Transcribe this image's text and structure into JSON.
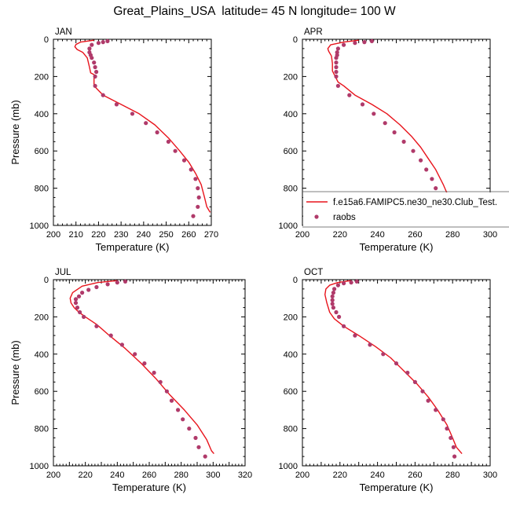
{
  "title": "Great_Plains_USA  latitude= 45 N longitude= 100 W",
  "colors": {
    "model_line": "#e8141c",
    "raobs_marker": "#b03a6a",
    "axis": "#000000",
    "background": "#ffffff"
  },
  "legend": {
    "panel": "APR",
    "entries": [
      {
        "label": "f.e15a6.FAMIPC5.ne30_ne30.Club_Test.",
        "style": "line"
      },
      {
        "label": "raobs",
        "style": "marker"
      }
    ]
  },
  "chart_data": [
    {
      "type": "line",
      "panel_label": "JAN",
      "xlabel": "Temperature (K)",
      "ylabel": "Pressure (mb)",
      "xlim": [
        200,
        270
      ],
      "ylim": [
        1000,
        0
      ],
      "y_reversed": true,
      "xticks": [
        200,
        210,
        220,
        230,
        240,
        250,
        260,
        270
      ],
      "yticks": [
        0,
        200,
        400,
        600,
        800,
        1000
      ],
      "series": [
        {
          "name": "f.e15a6.FAMIPC5.ne30_ne30.Club_Test.",
          "kind": "line",
          "points": [
            [
              218,
              5
            ],
            [
              212,
              15
            ],
            [
              210,
              28
            ],
            [
              209.5,
              40
            ],
            [
              210.5,
              55
            ],
            [
              213,
              70
            ],
            [
              215,
              100
            ],
            [
              216,
              150
            ],
            [
              216.5,
              180
            ],
            [
              218,
              190
            ],
            [
              218,
              250
            ],
            [
              222,
              300
            ],
            [
              230,
              350
            ],
            [
              238,
              400
            ],
            [
              245,
              460
            ],
            [
              251,
              530
            ],
            [
              256,
              600
            ],
            [
              260,
              660
            ],
            [
              263,
              720
            ],
            [
              265.5,
              780
            ],
            [
              267,
              850
            ],
            [
              268,
              900
            ],
            [
              269.5,
              930
            ]
          ]
        },
        {
          "name": "raobs",
          "kind": "marker",
          "points": [
            [
              224,
              10
            ],
            [
              222,
              15
            ],
            [
              220,
              20
            ],
            [
              217,
              30
            ],
            [
              216,
              50
            ],
            [
              216,
              70
            ],
            [
              216.5,
              85
            ],
            [
              217,
              100
            ],
            [
              218,
              125
            ],
            [
              218.5,
              150
            ],
            [
              219,
              175
            ],
            [
              218.5,
              200
            ],
            [
              218.5,
              250
            ],
            [
              222,
              300
            ],
            [
              228,
              350
            ],
            [
              235,
              400
            ],
            [
              241,
              450
            ],
            [
              246,
              500
            ],
            [
              251,
              550
            ],
            [
              254,
              600
            ],
            [
              258,
              650
            ],
            [
              261,
              700
            ],
            [
              263,
              750
            ],
            [
              264,
              800
            ],
            [
              264.5,
              850
            ],
            [
              264,
              900
            ],
            [
              262,
              950
            ]
          ]
        }
      ]
    },
    {
      "type": "line",
      "panel_label": "APR",
      "xlabel": "Temperature (K)",
      "ylabel": "",
      "xlim": [
        200,
        300
      ],
      "ylim": [
        1000,
        0
      ],
      "y_reversed": true,
      "xticks": [
        200,
        210,
        220,
        230,
        240,
        250,
        260,
        270,
        280,
        290,
        300
      ],
      "yticks": [
        0,
        200,
        400,
        600,
        800,
        1000
      ],
      "series": [
        {
          "name": "f.e15a6.FAMIPC5.ne30_ne30.Club_Test.",
          "kind": "line",
          "points": [
            [
              230,
              5
            ],
            [
              222,
              15
            ],
            [
              215,
              30
            ],
            [
              213.5,
              50
            ],
            [
              214,
              65
            ],
            [
              215.5,
              90
            ],
            [
              216,
              130
            ],
            [
              216,
              170
            ],
            [
              217.5,
              200
            ],
            [
              219,
              230
            ],
            [
              222,
              250
            ],
            [
              228,
              300
            ],
            [
              237,
              350
            ],
            [
              245,
              400
            ],
            [
              252,
              460
            ],
            [
              258,
              520
            ],
            [
              263,
              580
            ],
            [
              267,
              640
            ],
            [
              271,
              700
            ],
            [
              275,
              780
            ],
            [
              278,
              850
            ],
            [
              280,
              900
            ],
            [
              283,
              935
            ]
          ]
        },
        {
          "name": "raobs",
          "kind": "marker",
          "points": [
            [
              237,
              10
            ],
            [
              233,
              15
            ],
            [
              228,
              20
            ],
            [
              222,
              30
            ],
            [
              219,
              50
            ],
            [
              218.5,
              70
            ],
            [
              218.5,
              85
            ],
            [
              218,
              100
            ],
            [
              218,
              125
            ],
            [
              218,
              150
            ],
            [
              218,
              175
            ],
            [
              218,
              200
            ],
            [
              219,
              250
            ],
            [
              225,
              300
            ],
            [
              232,
              350
            ],
            [
              238,
              400
            ],
            [
              244,
              450
            ],
            [
              249,
              500
            ],
            [
              254,
              550
            ],
            [
              259,
              600
            ],
            [
              263,
              650
            ],
            [
              266,
              700
            ],
            [
              269,
              750
            ],
            [
              271,
              800
            ],
            [
              274,
              850
            ],
            [
              277,
              900
            ],
            [
              280,
              950
            ]
          ]
        }
      ]
    },
    {
      "type": "line",
      "panel_label": "JUL",
      "xlabel": "Temperature (K)",
      "ylabel": "Pressure (mb)",
      "xlim": [
        200,
        320
      ],
      "ylim": [
        1000,
        0
      ],
      "y_reversed": true,
      "xticks": [
        200,
        210,
        220,
        230,
        240,
        250,
        260,
        270,
        280,
        290,
        300,
        310,
        320
      ],
      "yticks": [
        0,
        200,
        400,
        600,
        800,
        1000
      ],
      "series": [
        {
          "name": "f.e15a6.FAMIPC5.ne30_ne30.Club_Test.",
          "kind": "line",
          "points": [
            [
              240,
              5
            ],
            [
              228,
              15
            ],
            [
              218,
              35
            ],
            [
              212,
              70
            ],
            [
              210.5,
              100
            ],
            [
              211,
              125
            ],
            [
              213,
              150
            ],
            [
              216,
              175
            ],
            [
              220,
              200
            ],
            [
              227,
              240
            ],
            [
              235,
              300
            ],
            [
              245,
              370
            ],
            [
              255,
              450
            ],
            [
              264,
              530
            ],
            [
              273,
              620
            ],
            [
              282,
              700
            ],
            [
              290,
              780
            ],
            [
              296,
              860
            ],
            [
              299,
              920
            ],
            [
              300.5,
              935
            ]
          ]
        },
        {
          "name": "raobs",
          "kind": "marker",
          "points": [
            [
              245,
              10
            ],
            [
              240,
              15
            ],
            [
              234,
              25
            ],
            [
              227,
              40
            ],
            [
              222,
              55
            ],
            [
              218,
              70
            ],
            [
              216,
              90
            ],
            [
              214,
              105
            ],
            [
              214,
              125
            ],
            [
              215,
              150
            ],
            [
              216.5,
              175
            ],
            [
              219,
              200
            ],
            [
              227,
              250
            ],
            [
              236,
              300
            ],
            [
              243,
              350
            ],
            [
              251,
              400
            ],
            [
              257,
              450
            ],
            [
              263,
              500
            ],
            [
              267,
              550
            ],
            [
              271,
              600
            ],
            [
              274,
              650
            ],
            [
              278,
              700
            ],
            [
              281,
              750
            ],
            [
              285,
              800
            ],
            [
              289,
              850
            ],
            [
              291,
              900
            ],
            [
              295,
              950
            ]
          ]
        }
      ]
    },
    {
      "type": "line",
      "panel_label": "OCT",
      "xlabel": "Temperature (K)",
      "ylabel": "",
      "xlim": [
        200,
        300
      ],
      "ylim": [
        1000,
        0
      ],
      "y_reversed": true,
      "xticks": [
        200,
        210,
        220,
        230,
        240,
        250,
        260,
        270,
        280,
        290,
        300
      ],
      "yticks": [
        0,
        200,
        400,
        600,
        800,
        1000
      ],
      "series": [
        {
          "name": "f.e15a6.FAMIPC5.ne30_ne30.Club_Test.",
          "kind": "line",
          "points": [
            [
              226,
              5
            ],
            [
              219,
              15
            ],
            [
              214.5,
              30
            ],
            [
              212.5,
              50
            ],
            [
              212,
              80
            ],
            [
              213,
              125
            ],
            [
              214.5,
              175
            ],
            [
              217,
              210
            ],
            [
              222,
              250
            ],
            [
              230,
              300
            ],
            [
              239,
              360
            ],
            [
              247,
              420
            ],
            [
              254,
              490
            ],
            [
              261,
              560
            ],
            [
              267,
              630
            ],
            [
              272,
              700
            ],
            [
              277,
              780
            ],
            [
              280,
              850
            ],
            [
              282,
              900
            ],
            [
              285,
              935
            ]
          ]
        },
        {
          "name": "raobs",
          "kind": "marker",
          "points": [
            [
              229,
              10
            ],
            [
              226,
              15
            ],
            [
              222,
              20
            ],
            [
              219,
              30
            ],
            [
              217,
              50
            ],
            [
              216.5,
              70
            ],
            [
              216,
              90
            ],
            [
              216,
              110
            ],
            [
              216,
              130
            ],
            [
              216.5,
              150
            ],
            [
              218,
              175
            ],
            [
              219.5,
              200
            ],
            [
              222,
              250
            ],
            [
              228,
              300
            ],
            [
              236,
              350
            ],
            [
              243,
              400
            ],
            [
              250,
              450
            ],
            [
              256,
              500
            ],
            [
              260,
              550
            ],
            [
              264,
              600
            ],
            [
              267,
              650
            ],
            [
              271,
              700
            ],
            [
              275,
              750
            ],
            [
              277,
              800
            ],
            [
              279,
              850
            ],
            [
              280.5,
              900
            ],
            [
              281,
              950
            ]
          ]
        }
      ]
    }
  ]
}
